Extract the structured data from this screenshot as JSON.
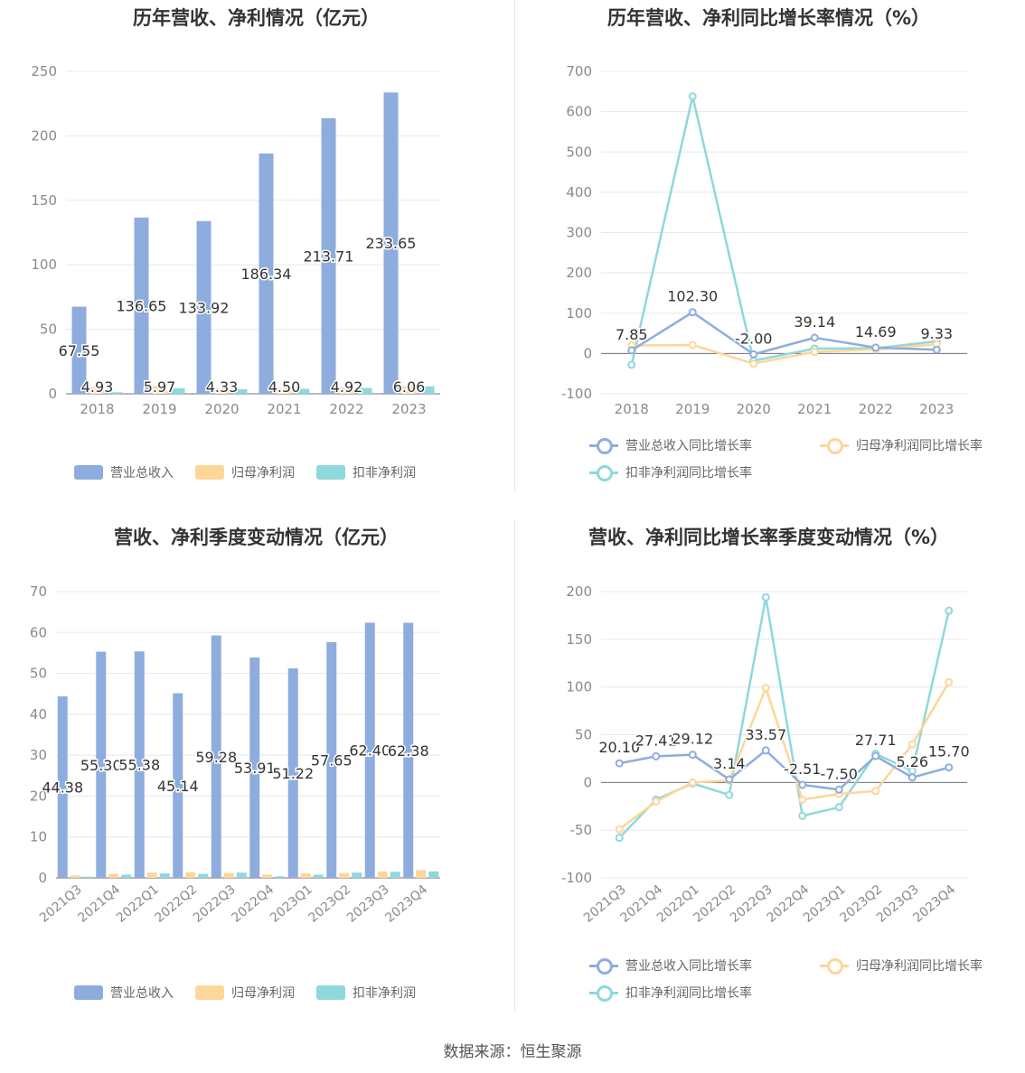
{
  "colors": {
    "revenue": "#8eadde",
    "net_profit": "#fdd698",
    "deducted_profit": "#8fd8db",
    "grid": "#e6e8ee",
    "axis_label": "#8a8a8a",
    "text": "#333333"
  },
  "source": "数据来源：恒生聚源",
  "chart_data": [
    {
      "type": "bar",
      "title": "历年营收、净利情况（亿元）",
      "categories": [
        "2018",
        "2019",
        "2020",
        "2021",
        "2022",
        "2023"
      ],
      "ylim": [
        0,
        250
      ],
      "yticks": [
        "0",
        "50",
        "100",
        "150",
        "200",
        "250"
      ],
      "grid": true,
      "legend_position": "bottom",
      "series": [
        {
          "name": "营业总收入",
          "values": [
            67.55,
            136.65,
            133.92,
            186.34,
            213.71,
            233.65
          ],
          "labels": [
            "67.55",
            "136.65",
            "133.92",
            "186.34",
            "213.71",
            "233.65"
          ]
        },
        {
          "name": "归母净利润",
          "values": [
            4.93,
            5.97,
            4.33,
            4.5,
            4.92,
            6.06
          ],
          "labels": [
            "4.93",
            "5.97",
            "4.33",
            "4.50",
            "4.92",
            "6.06"
          ]
        },
        {
          "name": "扣非净利润",
          "values": [
            1.2,
            4.3,
            3.6,
            3.9,
            4.5,
            5.8
          ]
        }
      ]
    },
    {
      "type": "line",
      "title": "历年营收、净利同比增长率情况（%）",
      "categories": [
        "2018",
        "2019",
        "2020",
        "2021",
        "2022",
        "2023"
      ],
      "ylim": [
        -100,
        700
      ],
      "yticks": [
        "-100",
        "0",
        "100",
        "200",
        "300",
        "400",
        "500",
        "600",
        "700"
      ],
      "grid": true,
      "legend_position": "bottom",
      "series": [
        {
          "name": "营业总收入同比增长率",
          "values": [
            7.85,
            102.3,
            -2.0,
            39.14,
            14.69,
            9.33
          ],
          "labels": [
            "7.85",
            "102.30",
            "-2.00",
            "39.14",
            "14.69",
            "9.33"
          ]
        },
        {
          "name": "归母净利润同比增长率",
          "values": [
            20,
            21,
            -25,
            4,
            10,
            23
          ]
        },
        {
          "name": "扣非净利润同比增长率",
          "values": [
            -28,
            638,
            -18,
            12,
            13,
            30
          ]
        }
      ]
    },
    {
      "type": "bar",
      "title": "营收、净利季度变动情况（亿元）",
      "categories": [
        "2021Q3",
        "2021Q4",
        "2022Q1",
        "2022Q2",
        "2022Q3",
        "2022Q4",
        "2023Q1",
        "2023Q2",
        "2023Q3",
        "2023Q4"
      ],
      "ylim": [
        0,
        70
      ],
      "yticks": [
        "0",
        "10",
        "20",
        "30",
        "40",
        "50",
        "60",
        "70"
      ],
      "grid": true,
      "legend_position": "bottom",
      "series": [
        {
          "name": "营业总收入",
          "values": [
            44.38,
            55.3,
            55.38,
            45.14,
            59.28,
            53.91,
            51.22,
            57.65,
            62.4,
            62.38
          ],
          "labels": [
            "44.38",
            "55.30",
            "55.38",
            "45.14",
            "59.28",
            "53.91",
            "51.22",
            "57.65",
            "62.40",
            "62.38"
          ]
        },
        {
          "name": "归母净利润",
          "values": [
            0.6,
            1.0,
            1.3,
            1.4,
            1.2,
            0.8,
            1.1,
            1.2,
            1.6,
            1.9
          ]
        },
        {
          "name": "扣非净利润",
          "values": [
            0.3,
            0.8,
            1.1,
            1.0,
            1.3,
            0.4,
            0.8,
            1.3,
            1.5,
            1.6
          ]
        }
      ]
    },
    {
      "type": "line",
      "title": "营收、净利同比增长率季度变动情况（%）",
      "categories": [
        "2021Q3",
        "2021Q4",
        "2022Q1",
        "2022Q2",
        "2022Q3",
        "2022Q4",
        "2023Q1",
        "2023Q2",
        "2023Q3",
        "2023Q4"
      ],
      "ylim": [
        -100,
        200
      ],
      "yticks": [
        "-100",
        "-50",
        "0",
        "50",
        "100",
        "150",
        "200"
      ],
      "grid": true,
      "legend_position": "bottom",
      "series": [
        {
          "name": "营业总收入同比增长率",
          "values": [
            20.1,
            27.41,
            29.12,
            3.14,
            33.57,
            -2.51,
            -7.5,
            27.71,
            5.26,
            15.7
          ],
          "labels": [
            "20.10",
            "27.41",
            "29.12",
            "3.14",
            "33.57",
            "-2.51",
            "-7.50",
            "27.71",
            "5.26",
            "15.70"
          ]
        },
        {
          "name": "归母净利润同比增长率",
          "values": [
            -49,
            -20,
            0,
            2,
            99,
            -18,
            -12,
            -9,
            40,
            105
          ]
        },
        {
          "name": "扣非净利润同比增长率",
          "values": [
            -58,
            -18,
            -1,
            -13,
            194,
            -35,
            -26,
            30,
            12,
            180
          ]
        }
      ]
    }
  ]
}
